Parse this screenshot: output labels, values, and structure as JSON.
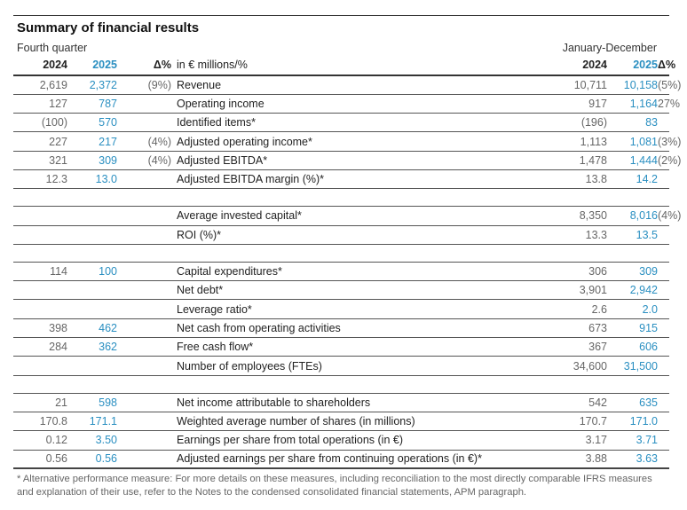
{
  "title": "Summary of financial results",
  "period_left": "Fourth quarter",
  "period_right": "January-December",
  "header": {
    "q_2024": "2024",
    "q_2025": "2025",
    "q_delta": "Δ%",
    "unit": "in € millions/%",
    "y_2024": "2024",
    "y_2025": "2025",
    "y_delta": "Δ%"
  },
  "rows": [
    {
      "label": "Revenue",
      "q24": "2,619",
      "q25": "2,372",
      "qd": "(9%)",
      "y24": "10,711",
      "y25": "10,158",
      "yd": "(5%)"
    },
    {
      "label": "Operating income",
      "q24": "127",
      "q25": "787",
      "qd": "",
      "y24": "917",
      "y25": "1,164",
      "yd": "27%"
    },
    {
      "label": "Identified items*",
      "q24": "(100)",
      "q25": "570",
      "qd": "",
      "y24": "(196)",
      "y25": "83",
      "yd": ""
    },
    {
      "label": "Adjusted operating income*",
      "q24": "227",
      "q25": "217",
      "qd": "(4%)",
      "y24": "1,113",
      "y25": "1,081",
      "yd": "(3%)"
    },
    {
      "label": "Adjusted EBITDA*",
      "q24": "321",
      "q25": "309",
      "qd": "(4%)",
      "y24": "1,478",
      "y25": "1,444",
      "yd": "(2%)"
    },
    {
      "label": "Adjusted EBITDA margin (%)*",
      "q24": "12.3",
      "q25": "13.0",
      "qd": "",
      "y24": "13.8",
      "y25": "14.2",
      "yd": ""
    },
    {
      "blank": true
    },
    {
      "label": "Average invested capital*",
      "q24": "",
      "q25": "",
      "qd": "",
      "y24": "8,350",
      "y25": "8,016",
      "yd": "(4%)"
    },
    {
      "label": "ROI (%)*",
      "q24": "",
      "q25": "",
      "qd": "",
      "y24": "13.3",
      "y25": "13.5",
      "yd": ""
    },
    {
      "blank": true
    },
    {
      "label": "Capital expenditures*",
      "q24": "114",
      "q25": "100",
      "qd": "",
      "y24": "306",
      "y25": "309",
      "yd": ""
    },
    {
      "label": "Net debt*",
      "q24": "",
      "q25": "",
      "qd": "",
      "y24": "3,901",
      "y25": "2,942",
      "yd": ""
    },
    {
      "label": "Leverage ratio*",
      "q24": "",
      "q25": "",
      "qd": "",
      "y24": "2.6",
      "y25": "2.0",
      "yd": ""
    },
    {
      "label": "Net cash from operating activities",
      "q24": "398",
      "q25": "462",
      "qd": "",
      "y24": "673",
      "y25": "915",
      "yd": ""
    },
    {
      "label": "Free cash flow*",
      "q24": "284",
      "q25": "362",
      "qd": "",
      "y24": "367",
      "y25": "606",
      "yd": ""
    },
    {
      "label": "Number of employees (FTEs)",
      "q24": "",
      "q25": "",
      "qd": "",
      "y24": "34,600",
      "y25": "31,500",
      "yd": ""
    },
    {
      "blank": true
    },
    {
      "label": "Net income attributable to shareholders",
      "q24": "21",
      "q25": "598",
      "qd": "",
      "y24": "542",
      "y25": "635",
      "yd": ""
    },
    {
      "label": "Weighted average number of shares (in millions)",
      "q24": "170.8",
      "q25": "171.1",
      "qd": "",
      "y24": "170.7",
      "y25": "171.0",
      "yd": ""
    },
    {
      "label": "Earnings per share from total operations (in €)",
      "q24": "0.12",
      "q25": "3.50",
      "qd": "",
      "y24": "3.17",
      "y25": "3.71",
      "yd": ""
    },
    {
      "label": "Adjusted earnings per share from continuing operations (in €)*",
      "q24": "0.56",
      "q25": "0.56",
      "qd": "",
      "y24": "3.88",
      "y25": "3.63",
      "yd": ""
    }
  ],
  "footnote": "* Alternative performance measure: For more details on these measures, including reconciliation to the most directly comparable IFRS measures and explanation of their use, refer to the Notes to the condensed consolidated financial statements, APM paragraph.",
  "colors": {
    "accent": "#2a8fc1",
    "muted": "#666666"
  }
}
